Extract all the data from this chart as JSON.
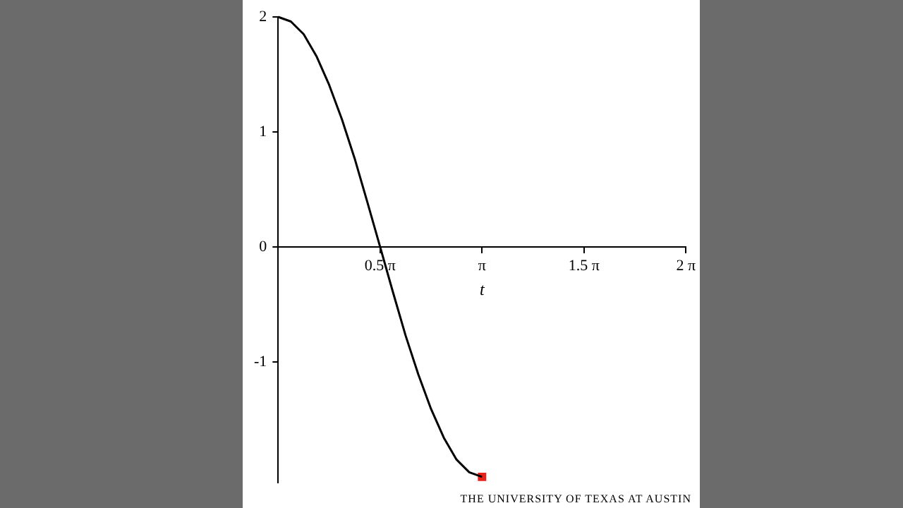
{
  "chart_data": {
    "type": "line",
    "xlabel": "t",
    "annotations": [
      "THE UNIVERSITY OF TEXAS AT AUSTIN"
    ],
    "xlim": [
      0,
      6.283
    ],
    "ylim": [
      -2.05,
      2
    ],
    "xticks": [
      {
        "value": 1.571,
        "label": "0.5 π"
      },
      {
        "value": 3.142,
        "label": "π"
      },
      {
        "value": 4.712,
        "label": "1.5 π"
      },
      {
        "value": 6.283,
        "label": "2 π"
      }
    ],
    "yticks": [
      -1,
      0,
      1,
      2
    ],
    "legend": false,
    "series": [
      {
        "type": "line",
        "color": "#000000",
        "marker": "none",
        "x": [
          0,
          0.196,
          0.393,
          0.589,
          0.785,
          0.982,
          1.178,
          1.374,
          1.571,
          1.767,
          1.963,
          2.16,
          2.356,
          2.553,
          2.749,
          2.945,
          3.142
        ],
        "values": [
          2,
          1.96,
          1.85,
          1.66,
          1.41,
          1.11,
          0.77,
          0.39,
          0,
          -0.39,
          -0.77,
          -1.11,
          -1.41,
          -1.66,
          -1.85,
          -1.96,
          -2
        ]
      },
      {
        "type": "scatter",
        "color": "#e8221a",
        "marker": "square",
        "x": [
          3.142
        ],
        "values": [
          -2
        ]
      }
    ]
  }
}
